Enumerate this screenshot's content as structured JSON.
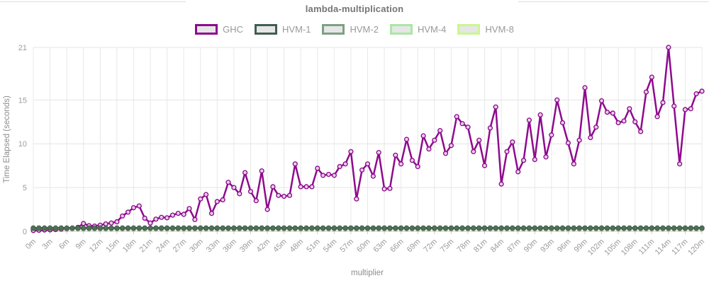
{
  "chart_data": {
    "type": "line",
    "title": "lambda-multiplication",
    "xlabel": "multiplier",
    "ylabel": "Time Elapsed (seconds)",
    "xlim": [
      0,
      120
    ],
    "ylim": [
      0,
      21
    ],
    "y_ticks": [
      0,
      5,
      10,
      15,
      21
    ],
    "x_step": 1,
    "x_tick_step": 3,
    "x_tick_suffix": "m",
    "x_tick_labels": [
      "0m",
      "3m",
      "6m",
      "9m",
      "12m",
      "15m",
      "18m",
      "21m",
      "24m",
      "27m",
      "30m",
      "33m",
      "36m",
      "39m",
      "42m",
      "45m",
      "48m",
      "51m",
      "54m",
      "57m",
      "60m",
      "63m",
      "66m",
      "69m",
      "72m",
      "75m",
      "78m",
      "81m",
      "84m",
      "87m",
      "90m",
      "93m",
      "96m",
      "99m",
      "102m",
      "105m",
      "108m",
      "111m",
      "114m",
      "117m",
      "120m"
    ],
    "grid": true,
    "legend_position": "top",
    "series": [
      {
        "name": "GHC",
        "color": "#8e0a8e",
        "marker": "open-circle",
        "marker_fill": "#f3eaf3",
        "values": [
          0.1,
          0.12,
          0.15,
          0.17,
          0.2,
          0.25,
          0.3,
          0.35,
          0.45,
          0.9,
          0.65,
          0.6,
          0.7,
          0.85,
          0.95,
          1.1,
          1.75,
          2.2,
          2.7,
          2.9,
          1.5,
          0.95,
          1.4,
          1.6,
          1.55,
          1.85,
          2.05,
          1.95,
          2.6,
          1.35,
          3.7,
          4.2,
          2.05,
          3.4,
          3.6,
          5.6,
          5.0,
          4.3,
          6.7,
          4.55,
          3.5,
          6.9,
          2.5,
          5.1,
          4.1,
          4.0,
          4.1,
          7.7,
          5.1,
          5.1,
          5.1,
          7.2,
          6.4,
          6.5,
          6.4,
          7.4,
          7.7,
          9.1,
          3.7,
          7.0,
          7.7,
          6.3,
          9.0,
          4.85,
          4.9,
          8.7,
          7.7,
          10.5,
          8.1,
          7.4,
          10.9,
          9.4,
          10.4,
          11.5,
          8.9,
          9.8,
          13.1,
          12.3,
          11.9,
          9.1,
          10.4,
          7.5,
          11.8,
          14.2,
          5.4,
          9.1,
          10.2,
          6.8,
          8.1,
          12.7,
          8.2,
          13.3,
          8.5,
          11.0,
          15.0,
          12.4,
          10.1,
          7.7,
          10.4,
          16.4,
          10.7,
          11.9,
          14.9,
          13.6,
          13.5,
          12.4,
          12.6,
          14.0,
          12.5,
          11.4,
          15.9,
          17.6,
          13.1,
          14.7,
          21.0,
          14.3,
          7.7,
          13.9,
          14.0,
          15.7,
          16.0
        ]
      },
      {
        "name": "HVM-1",
        "color": "#3f5f50",
        "marker": "filled-circle",
        "dot_fill": "#4e7158",
        "constant_value": 0.4
      },
      {
        "name": "HVM-2",
        "color": "#7ca184",
        "marker": "filled-circle",
        "dot_fill": "#86ab8e",
        "constant_value": 0.37
      },
      {
        "name": "HVM-4",
        "color": "#a9e8a2",
        "marker": "filled-circle",
        "dot_fill": "#a9e8a2",
        "constant_value": 0.33
      },
      {
        "name": "HVM-8",
        "color": "#caf78f",
        "marker": "filled-circle",
        "dot_fill": "#caf78f",
        "constant_value": 0.3
      }
    ]
  }
}
